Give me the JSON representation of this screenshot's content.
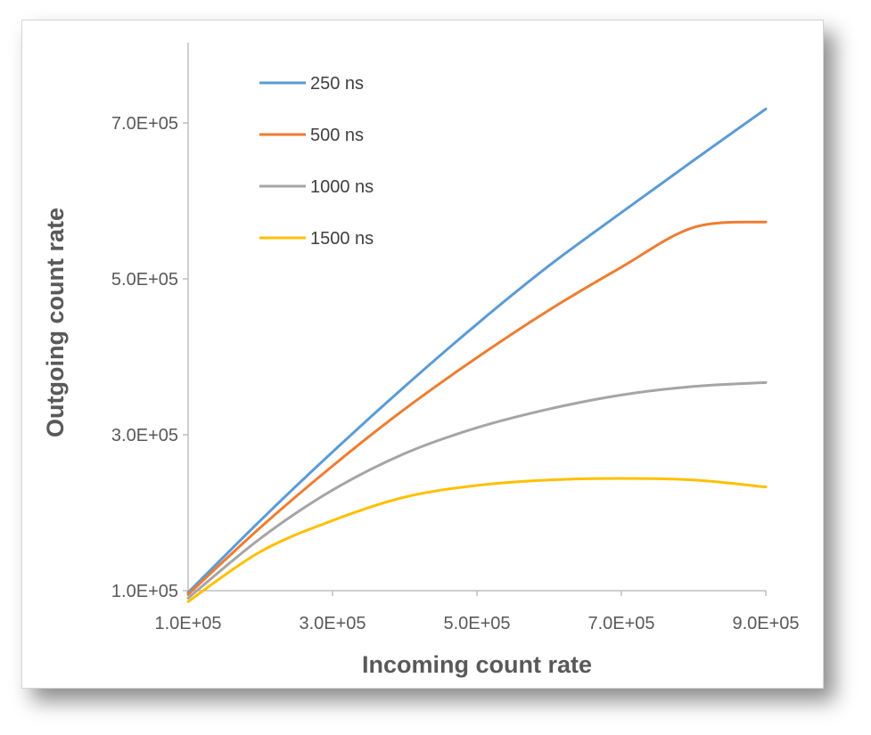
{
  "chart_data": {
    "type": "line",
    "xlabel": "Incoming count rate",
    "ylabel": "Outgoing count rate",
    "x_ticks": [
      "1.0E+05",
      "3.0E+05",
      "5.0E+05",
      "7.0E+05",
      "9.0E+05"
    ],
    "y_ticks": [
      "1.0E+05",
      "3.0E+05",
      "5.0E+05",
      "7.0E+05"
    ],
    "xlim": [
      100000,
      900000
    ],
    "ylim": [
      100000,
      800000
    ],
    "grid": false,
    "legend_position": "top-left",
    "x": [
      100000,
      200000,
      300000,
      400000,
      500000,
      600000,
      700000,
      800000,
      900000
    ],
    "series": [
      {
        "name": "250 ns",
        "color": "#5B9BD5",
        "values": [
          97600,
          190000,
          278000,
          362000,
          442000,
          517000,
          585000,
          652000,
          718000
        ]
      },
      {
        "name": "500 ns",
        "color": "#ED7D31",
        "values": [
          95200,
          181000,
          260000,
          333000,
          399000,
          460000,
          515000,
          566000,
          573000
        ]
      },
      {
        "name": "1000 ns",
        "color": "#A5A5A5",
        "values": [
          90500,
          167000,
          229000,
          276000,
          309000,
          333000,
          351000,
          362000,
          367000
        ]
      },
      {
        "name": "1500 ns",
        "color": "#FFC000",
        "values": [
          86000,
          150000,
          190000,
          220000,
          235000,
          242000,
          244000,
          242000,
          233000
        ]
      }
    ]
  }
}
